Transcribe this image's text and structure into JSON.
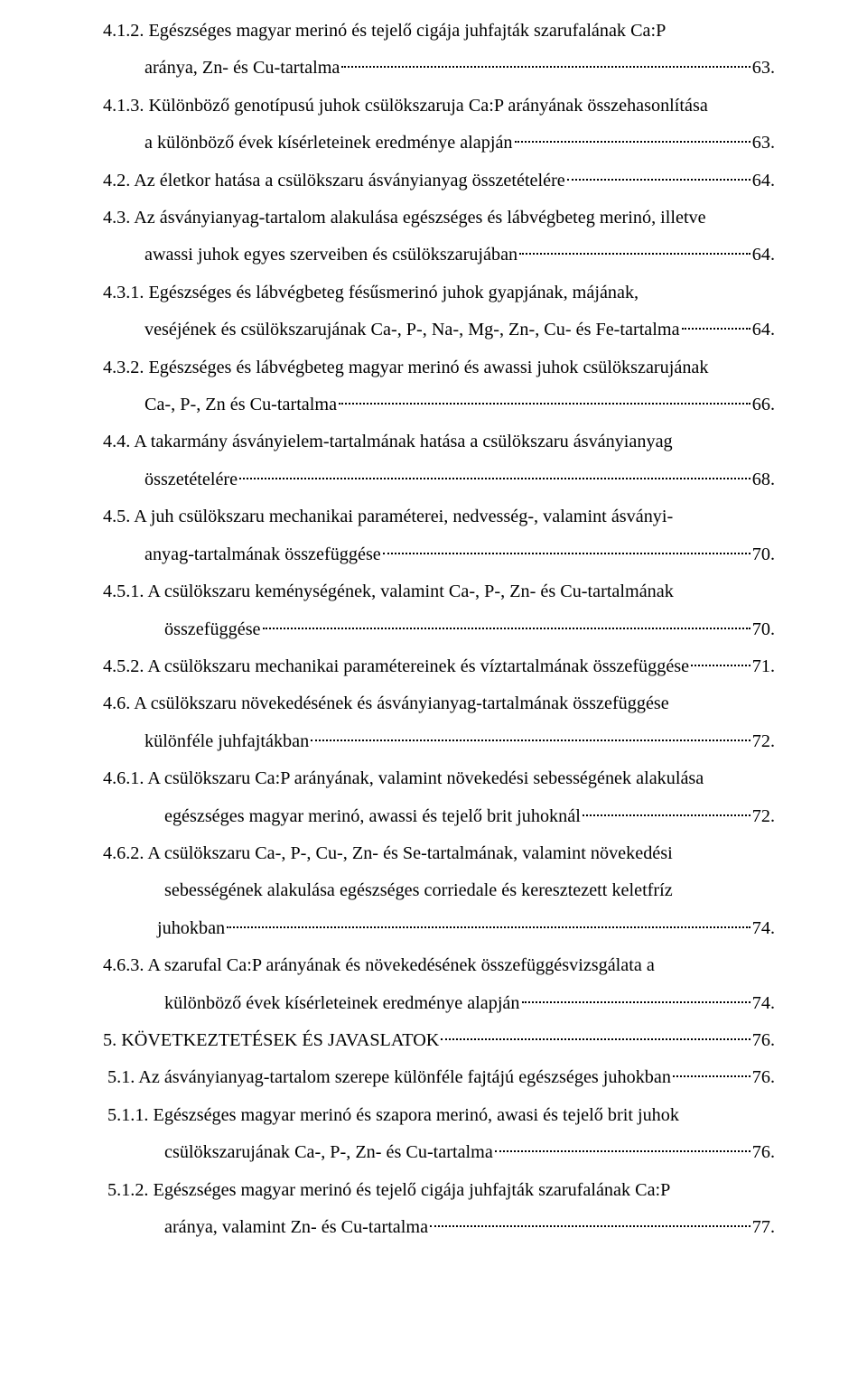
{
  "entries": [
    {
      "lines": [
        {
          "text": "4.1.2. Egészséges magyar merinó és tejelő cigája juhfajták szarufalának Ca:P",
          "indent": "",
          "noLeader": true
        },
        {
          "text": "aránya, Zn- és Cu-tartalma",
          "indent": "indent-1",
          "page": "63.",
          "leaderStyle": "dots"
        }
      ]
    },
    {
      "lines": [
        {
          "text": "4.1.3. Különböző genotípusú juhok csülökszaruja Ca:P arányának összehasonlítása",
          "indent": "",
          "noLeader": true
        },
        {
          "text": "a különböző évek kísérleteinek eredménye alapján",
          "indent": "indent-1",
          "page": "63.",
          "leaderStyle": "short"
        }
      ]
    },
    {
      "lines": [
        {
          "text": "4.2. Az életkor hatása a csülökszaru ásványianyag összetételére",
          "indent": "",
          "page": "64.",
          "leaderStyle": "short"
        }
      ]
    },
    {
      "lines": [
        {
          "text": "4.3. Az ásványianyag-tartalom alakulása egészséges és lábvégbeteg merinó, illetve",
          "indent": "",
          "noLeader": true
        },
        {
          "text": "awassi juhok egyes szerveiben és csülökszarujában",
          "indent": "indent-1",
          "page": "64.",
          "leaderStyle": "short"
        }
      ]
    },
    {
      "lines": [
        {
          "text": "4.3.1. Egészséges és lábvégbeteg fésűsmerinó juhok gyapjának, májának,",
          "indent": "",
          "noLeader": true
        },
        {
          "text": "veséjének és csülökszarujának Ca-, P-, Na-, Mg-, Zn-, Cu- és Fe-tartalma",
          "indent": "indent-1",
          "page": "64.",
          "leaderStyle": "twodot"
        }
      ]
    },
    {
      "lines": [
        {
          "text": "4.3.2. Egészséges és lábvégbeteg magyar merinó és awassi juhok csülökszarujának",
          "indent": "",
          "noLeader": true
        },
        {
          "text": "Ca-, P-, Zn és Cu-tartalma",
          "indent": "indent-1",
          "page": "66.",
          "leaderStyle": "twodot"
        }
      ]
    },
    {
      "lines": [
        {
          "text": "4.4. A takarmány ásványielem-tartalmának hatása a csülökszaru ásványianyag",
          "indent": "",
          "noLeader": true
        },
        {
          "text": "összetételére",
          "indent": "indent-1",
          "page": "68.",
          "leaderStyle": "short"
        }
      ]
    },
    {
      "lines": [
        {
          "text": "4.5. A juh csülökszaru mechanikai paraméterei, nedvesség-, valamint ásványi-",
          "indent": "",
          "noLeader": true
        },
        {
          "text": "anyag-tartalmának összefüggése",
          "indent": "indent-1",
          "page": "70.",
          "leaderStyle": "short"
        }
      ]
    },
    {
      "lines": [
        {
          "text": "4.5.1. A csülökszaru keménységének, valamint Ca-, P-, Zn- és Cu-tartalmának",
          "indent": "",
          "noLeader": true
        },
        {
          "text": "összefüggése",
          "indent": "indent-2",
          "page": "70.",
          "leaderStyle": "short"
        }
      ]
    },
    {
      "lines": [
        {
          "text": "4.5.2. A csülökszaru mechanikai paramétereinek és víztartalmának összefüggése",
          "indent": "",
          "page": "71.",
          "leaderStyle": "dots"
        }
      ]
    },
    {
      "lines": [
        {
          "text": "4.6. A csülökszaru növekedésének és ásványianyag-tartalmának összefüggése",
          "indent": "",
          "noLeader": true
        },
        {
          "text": "különféle juhfajtákban",
          "indent": "indent-1",
          "page": "72.",
          "leaderStyle": "short"
        }
      ]
    },
    {
      "lines": [
        {
          "text": "4.6.1. A csülökszaru Ca:P arányának, valamint növekedési sebességének alakulása",
          "indent": "",
          "noLeader": true
        },
        {
          "text": "egészséges magyar merinó, awassi és tejelő brit juhoknál",
          "indent": "indent-2",
          "page": "72.",
          "leaderStyle": "dots"
        }
      ]
    },
    {
      "lines": [
        {
          "text": "4.6.2. A csülökszaru Ca-, P-, Cu-, Zn- és Se-tartalmának, valamint növekedési",
          "indent": "",
          "noLeader": true
        },
        {
          "text": "sebességének alakulása egészséges corriedale és keresztezett keletfríz",
          "indent": "indent-2",
          "noLeader": true
        },
        {
          "text": "juhokban",
          "indent": "indent-3",
          "page": "74.",
          "leaderStyle": "short"
        }
      ]
    },
    {
      "lines": [
        {
          "text": "4.6.3. A szarufal Ca:P arányának és növekedésének összefüggésvizsgálata a",
          "indent": "",
          "noLeader": true
        },
        {
          "text": "különböző évek kísérleteinek eredménye alapján",
          "indent": "indent-2",
          "page": "74.",
          "leaderStyle": "short"
        }
      ]
    },
    {
      "lines": [
        {
          "text": "5. KÖVETKEZTETÉSEK ÉS JAVASLATOK",
          "indent": "",
          "page": "76.",
          "leaderStyle": "short"
        }
      ]
    },
    {
      "lines": [
        {
          "text": " 5.1. Az ásványianyag-tartalom szerepe különféle fajtájú egészséges juhokban",
          "indent": "",
          "page": "76.",
          "leaderStyle": "short"
        }
      ]
    },
    {
      "lines": [
        {
          "text": " 5.1.1. Egészséges magyar merinó és szapora merinó, awasi és tejelő brit juhok",
          "indent": "",
          "noLeader": true
        },
        {
          "text": "csülökszarujának Ca-, P-, Zn- és Cu-tartalma",
          "indent": "indent-2",
          "page": "76.",
          "leaderStyle": "short"
        }
      ]
    },
    {
      "lines": [
        {
          "text": " 5.1.2. Egészséges magyar merinó és tejelő cigája juhfajták szarufalának Ca:P",
          "indent": "",
          "noLeader": true
        },
        {
          "text": "aránya, valamint Zn- és Cu-tartalma",
          "indent": "indent-2",
          "page": "77.",
          "leaderStyle": "short"
        }
      ]
    }
  ]
}
